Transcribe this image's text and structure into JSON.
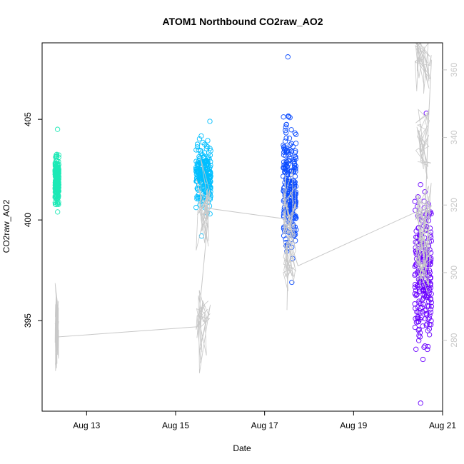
{
  "chart_data": {
    "type": "scatter",
    "title": "ATOM1 Northbound CO2raw_AO2",
    "xlabel": "Date",
    "ylabel": "CO2raw_AO2",
    "x_axis": {
      "type": "date",
      "range": [
        "2023-08-12T00:00",
        "2023-08-21T00:00"
      ],
      "ticks": [
        {
          "value": "2023-08-13T00:00",
          "label": "Aug 13"
        },
        {
          "value": "2023-08-15T00:00",
          "label": "Aug 15"
        },
        {
          "value": "2023-08-17T00:00",
          "label": "Aug 17"
        },
        {
          "value": "2023-08-19T00:00",
          "label": "Aug 19"
        },
        {
          "value": "2023-08-21T00:00",
          "label": "Aug 21"
        }
      ]
    },
    "y_left": {
      "range": [
        390.5,
        408.8
      ],
      "ticks": [
        {
          "value": 395,
          "label": "395"
        },
        {
          "value": 400,
          "label": "400"
        },
        {
          "value": 405,
          "label": "405"
        }
      ]
    },
    "y_right": {
      "color": "#c8c8c8",
      "range": [
        259,
        368
      ],
      "ticks": [
        {
          "value": 280,
          "label": "280"
        },
        {
          "value": 300,
          "label": "300"
        },
        {
          "value": 320,
          "label": "320"
        },
        {
          "value": 340,
          "label": "340"
        },
        {
          "value": 360,
          "label": "360"
        }
      ]
    },
    "grid": false,
    "legend": "none",
    "line_color": "#c8c8c8",
    "series": [
      {
        "axis": "left",
        "kind": "points",
        "color": "#1de9b6",
        "x_start": "2023-08-12T07:00",
        "x_end": "2023-08-12T09:00",
        "y_min": 400.4,
        "y_max": 404.5,
        "y_typical": 402.0
      },
      {
        "axis": "left",
        "kind": "points",
        "color": "#00bfff",
        "x_start": "2023-08-15T11:00",
        "x_end": "2023-08-15T19:00",
        "y_min": 399.2,
        "y_max": 404.9,
        "y_typical": 402.2
      },
      {
        "axis": "left",
        "kind": "points",
        "color": "#0a4bff",
        "x_start": "2023-08-17T10:00",
        "x_end": "2023-08-17T17:00",
        "y_min": 396.9,
        "y_max": 408.1,
        "y_typical": 401.5
      },
      {
        "axis": "left",
        "kind": "points",
        "color": "#6a00ff",
        "x_start": "2023-08-20T09:00",
        "x_end": "2023-08-20T18:00",
        "y_min": 390.9,
        "y_max": 405.3,
        "y_typical": 397.5
      },
      {
        "axis": "right",
        "kind": "line",
        "color": "#c8c8c8",
        "x": [
          "2023-08-12T07:00",
          "2023-08-12T09:00",
          "2023-08-15T12:00",
          "2023-08-15T18:00",
          "2023-08-17T10:00",
          "2023-08-17T18:00",
          "2023-08-20T10:00",
          "2023-08-20T14:00",
          "2023-08-20T16:00",
          "2023-08-20T18:00"
        ],
        "y": [
          285.0,
          281.0,
          284.0,
          319.0,
          316.0,
          302.0,
          318.0,
          305.0,
          340.0,
          363.0
        ]
      }
    ]
  }
}
